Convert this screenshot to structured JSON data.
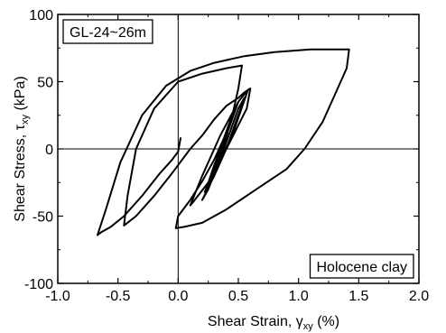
{
  "chart_data": {
    "type": "line",
    "title": "",
    "xlabel": {
      "main": "Shear Strain, ",
      "symbol": "γ",
      "sub": "xy",
      "unit": " (%)"
    },
    "ylabel": {
      "main": "Shear Stress, ",
      "symbol": "τ",
      "sub": "xy",
      "unit": " (kPa)"
    },
    "xlim": [
      -1.0,
      2.0
    ],
    "ylim": [
      -100,
      100
    ],
    "xticks": [
      -1.0,
      -0.5,
      0.0,
      0.5,
      1.0,
      1.5,
      2.0
    ],
    "yticks": [
      -100,
      -50,
      0,
      50,
      100
    ],
    "xtick_labels": [
      "-1.0",
      "-0.5",
      "0.0",
      "0.5",
      "1.0",
      "1.5",
      "2.0"
    ],
    "ytick_labels": [
      "-100",
      "-50",
      "0",
      "50",
      "100"
    ],
    "grid": false,
    "zero_lines": true,
    "annotations": [
      {
        "text": "GL-24~26m",
        "position": "top-left"
      },
      {
        "text": "Holocene clay",
        "position": "bottom-right"
      }
    ],
    "series": [
      {
        "color": "#000000",
        "points": [
          [
            0.02,
            8
          ],
          [
            0.0,
            -2
          ],
          [
            -0.05,
            -8
          ],
          [
            -0.15,
            -18
          ],
          [
            -0.3,
            -35
          ],
          [
            -0.45,
            -50
          ],
          [
            -0.56,
            -58
          ],
          [
            -0.64,
            -62
          ],
          [
            -0.67,
            -64
          ],
          [
            -0.6,
            -45
          ],
          [
            -0.48,
            -10
          ],
          [
            -0.3,
            25
          ],
          [
            -0.1,
            47
          ],
          [
            0.1,
            58
          ],
          [
            0.3,
            64
          ],
          [
            0.55,
            69
          ],
          [
            0.8,
            72
          ],
          [
            1.1,
            74
          ],
          [
            1.42,
            74
          ],
          [
            1.4,
            60
          ],
          [
            1.3,
            40
          ],
          [
            1.2,
            20
          ],
          [
            1.05,
            0
          ],
          [
            0.9,
            -15
          ],
          [
            0.65,
            -30
          ],
          [
            0.4,
            -45
          ],
          [
            0.2,
            -55
          ],
          [
            0.05,
            -58
          ],
          [
            -0.02,
            -59
          ],
          [
            0.0,
            -50
          ],
          [
            0.1,
            -38
          ],
          [
            0.2,
            -24
          ],
          [
            0.3,
            -8
          ],
          [
            0.38,
            8
          ],
          [
            0.45,
            25
          ],
          [
            0.5,
            45
          ],
          [
            0.53,
            62
          ],
          [
            0.4,
            60
          ],
          [
            0.2,
            56
          ],
          [
            0.0,
            50
          ],
          [
            -0.2,
            30
          ],
          [
            -0.35,
            0
          ],
          [
            -0.42,
            -35
          ],
          [
            -0.45,
            -57
          ],
          [
            -0.35,
            -50
          ],
          [
            -0.2,
            -35
          ],
          [
            -0.05,
            -18
          ],
          [
            0.1,
            0
          ],
          [
            0.2,
            10
          ],
          [
            0.3,
            22
          ],
          [
            0.4,
            32
          ],
          [
            0.5,
            38
          ],
          [
            0.55,
            42
          ],
          [
            0.6,
            45
          ],
          [
            0.57,
            30
          ],
          [
            0.4,
            0
          ],
          [
            0.25,
            -25
          ],
          [
            0.12,
            -40
          ],
          [
            0.1,
            -42
          ],
          [
            0.2,
            -20
          ],
          [
            0.35,
            10
          ],
          [
            0.5,
            35
          ],
          [
            0.58,
            44
          ],
          [
            0.45,
            10
          ],
          [
            0.3,
            -20
          ],
          [
            0.2,
            -38
          ],
          [
            0.25,
            -30
          ],
          [
            0.38,
            0
          ],
          [
            0.5,
            30
          ],
          [
            0.55,
            38
          ],
          [
            0.42,
            5
          ],
          [
            0.3,
            -20
          ],
          [
            0.22,
            -32
          ],
          [
            0.3,
            -15
          ],
          [
            0.42,
            15
          ],
          [
            0.5,
            35
          ],
          [
            0.4,
            10
          ],
          [
            0.3,
            -15
          ],
          [
            0.25,
            -25
          ],
          [
            0.33,
            -5
          ],
          [
            0.44,
            20
          ],
          [
            0.48,
            30
          ],
          [
            0.38,
            5
          ],
          [
            0.3,
            -12
          ],
          [
            0.27,
            -20
          ],
          [
            0.35,
            0
          ],
          [
            0.43,
            20
          ],
          [
            0.46,
            28
          ],
          [
            0.37,
            5
          ],
          [
            0.31,
            -10
          ],
          [
            0.29,
            -15
          ],
          [
            0.36,
            0
          ],
          [
            0.42,
            15
          ],
          [
            0.44,
            22
          ],
          [
            0.37,
            5
          ],
          [
            0.32,
            -8
          ],
          [
            0.31,
            -12
          ],
          [
            0.37,
            0
          ],
          [
            0.41,
            12
          ],
          [
            0.42,
            18
          ],
          [
            0.36,
            2
          ],
          [
            0.33,
            -6
          ],
          [
            0.34,
            -3
          ],
          [
            0.38,
            5
          ]
        ]
      }
    ]
  }
}
